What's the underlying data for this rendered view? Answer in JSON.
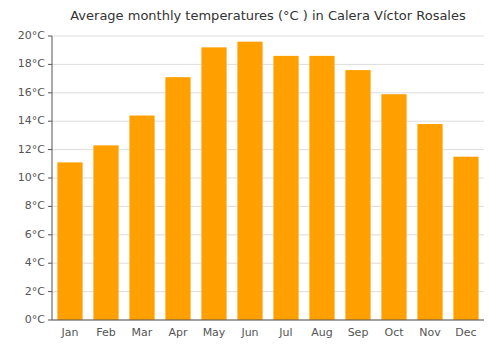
{
  "chart_data": {
    "type": "bar",
    "title": "Average monthly temperatures (°C ) in Calera Víctor Rosales",
    "categories": [
      "Jan",
      "Feb",
      "Mar",
      "Apr",
      "May",
      "Jun",
      "Jul",
      "Aug",
      "Sep",
      "Oct",
      "Nov",
      "Dec"
    ],
    "values": [
      11.1,
      12.3,
      14.4,
      17.1,
      19.2,
      19.6,
      18.6,
      18.6,
      17.6,
      15.9,
      13.8,
      11.5
    ],
    "color": "#FFA000",
    "ylim": [
      0,
      20
    ],
    "yticks": [
      {
        "value": 0,
        "label": "0°C"
      },
      {
        "value": 2,
        "label": "2°C"
      },
      {
        "value": 4,
        "label": "4°C"
      },
      {
        "value": 6,
        "label": "6°C"
      },
      {
        "value": 8,
        "label": "8°C"
      },
      {
        "value": 10,
        "label": "10°C"
      },
      {
        "value": 12,
        "label": "12°C"
      },
      {
        "value": 14,
        "label": "14°C"
      },
      {
        "value": 16,
        "label": "16°C"
      },
      {
        "value": 18,
        "label": "18°C"
      },
      {
        "value": 20,
        "label": "20°C"
      }
    ],
    "grid": true
  }
}
